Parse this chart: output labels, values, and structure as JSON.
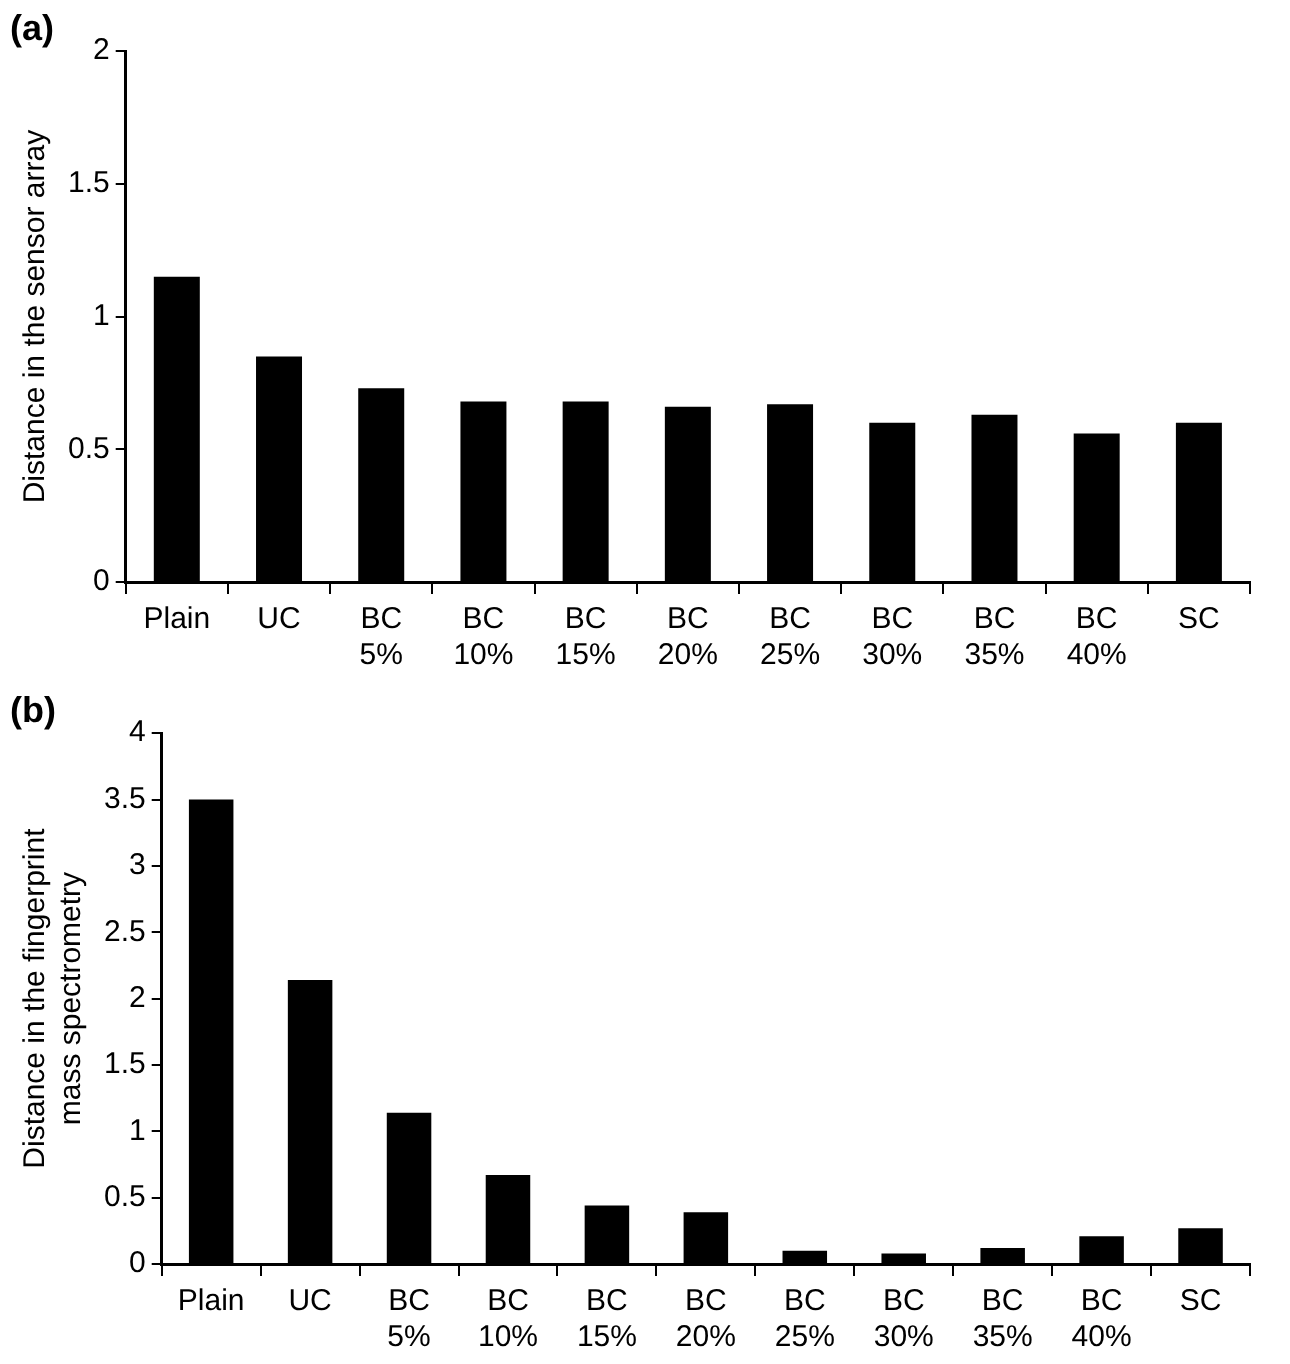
{
  "chart_data": [
    {
      "type": "bar",
      "title": "(a)",
      "ylabel": "Distance in the sensor array",
      "categories": [
        "Plain",
        "UC",
        "BC 5%",
        "BC 10%",
        "BC 15%",
        "BC 20%",
        "BC 25%",
        "BC 30%",
        "BC 35%",
        "BC 40%",
        "SC"
      ],
      "values": [
        1.15,
        0.85,
        0.73,
        0.68,
        0.68,
        0.66,
        0.67,
        0.6,
        0.63,
        0.56,
        0.6
      ],
      "color": "#000000",
      "ylim": [
        0,
        2
      ],
      "yticks": [
        0,
        0.5,
        1,
        1.5,
        2
      ],
      "grid": false,
      "legend": false
    },
    {
      "type": "bar",
      "title": "(b)",
      "ylabel": "Distance in the fingerprint\nmass spectrometry",
      "categories": [
        "Plain",
        "UC",
        "BC 5%",
        "BC 10%",
        "BC 15%",
        "BC 20%",
        "BC 25%",
        "BC 30%",
        "BC 35%",
        "BC 40%",
        "SC"
      ],
      "values": [
        3.5,
        2.14,
        1.14,
        0.67,
        0.44,
        0.39,
        0.1,
        0.08,
        0.12,
        0.21,
        0.27
      ],
      "color": "#000000",
      "ylim": [
        0,
        4
      ],
      "yticks": [
        0,
        0.5,
        1,
        1.5,
        2,
        2.5,
        3,
        3.5,
        4
      ],
      "grid": false,
      "legend": false
    }
  ]
}
